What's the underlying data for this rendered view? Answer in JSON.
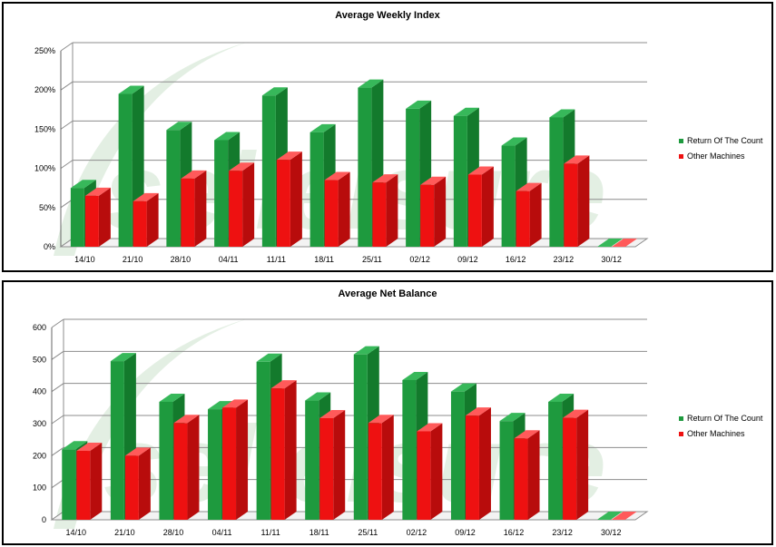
{
  "colors": {
    "series_green": "#1e9a3e",
    "series_green_side": "#137a2c",
    "series_green_top": "#37b85a",
    "series_red": "#ee1111",
    "series_red_side": "#b80c0c",
    "series_red_top": "#ff5a5a",
    "grid": "#8c8c8c",
    "watermark": "#e3efe3"
  },
  "watermark": {
    "text": "selleisure"
  },
  "chart_data": [
    {
      "type": "bar",
      "title": "Average Weekly Index",
      "xlabel": "",
      "ylabel": "",
      "categories": [
        "14/10",
        "21/10",
        "28/10",
        "04/11",
        "11/11",
        "18/11",
        "25/11",
        "02/12",
        "09/12",
        "16/12",
        "23/12",
        "30/12"
      ],
      "series": [
        {
          "name": "Return Of The Count",
          "values": [
            75,
            195,
            149,
            136,
            193,
            146,
            203,
            176,
            167,
            129,
            165,
            0
          ]
        },
        {
          "name": "Other Machines",
          "values": [
            65,
            58,
            87,
            97,
            111,
            85,
            82,
            79,
            92,
            71,
            106,
            0
          ]
        }
      ],
      "ylim": [
        0,
        250
      ],
      "yticks": [
        0,
        50,
        100,
        150,
        200,
        250
      ],
      "ytick_labels": [
        "0%",
        "50%",
        "100%",
        "150%",
        "200%",
        "250%"
      ],
      "grid": true,
      "legend_position": "right"
    },
    {
      "type": "bar",
      "title": "Average Net Balance",
      "xlabel": "",
      "ylabel": "",
      "categories": [
        "14/10",
        "21/10",
        "28/10",
        "04/11",
        "11/11",
        "18/11",
        "25/11",
        "02/12",
        "09/12",
        "16/12",
        "23/12",
        "30/12"
      ],
      "series": [
        {
          "name": "Return Of The Count",
          "values": [
            220,
            495,
            368,
            345,
            493,
            372,
            516,
            436,
            400,
            308,
            368,
            0
          ]
        },
        {
          "name": "Other Machines",
          "values": [
            215,
            200,
            302,
            350,
            410,
            317,
            302,
            276,
            325,
            254,
            318,
            0
          ]
        }
      ],
      "ylim": [
        0,
        600
      ],
      "yticks": [
        0,
        100,
        200,
        300,
        400,
        500,
        600
      ],
      "ytick_labels": [
        "0",
        "100",
        "200",
        "300",
        "400",
        "500",
        "600"
      ],
      "grid": true,
      "legend_position": "right"
    }
  ]
}
